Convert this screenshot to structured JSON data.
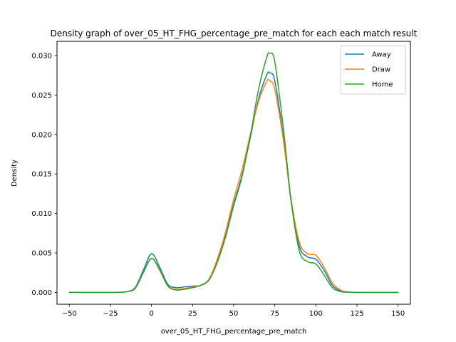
{
  "chart_data": {
    "type": "line",
    "title": "Density graph of over_05_HT_FHG_percentage_pre_match for each each match result",
    "xlabel": "over_05_HT_FHG_percentage_pre_match",
    "ylabel": "Density",
    "xlim": [
      -57.5,
      157.5
    ],
    "ylim": [
      -0.0015,
      0.0318
    ],
    "x_ticks": [
      -50,
      -25,
      0,
      25,
      50,
      75,
      100,
      125,
      150
    ],
    "x_tick_labels": [
      "−50",
      "−25",
      "0",
      "25",
      "50",
      "75",
      "100",
      "125",
      "150"
    ],
    "y_ticks": [
      0.0,
      0.005,
      0.01,
      0.015,
      0.02,
      0.025,
      0.03
    ],
    "y_tick_labels": [
      "0.000",
      "0.005",
      "0.010",
      "0.015",
      "0.020",
      "0.025",
      "0.030"
    ],
    "grid": false,
    "legend_position": "top-right",
    "x": [
      -50,
      -30,
      -20,
      -15,
      -10,
      -5,
      0,
      5,
      10,
      15,
      20,
      25,
      30,
      35,
      40,
      45,
      50,
      55,
      60,
      65,
      70,
      72,
      75,
      80,
      85,
      90,
      95,
      100,
      105,
      110,
      115,
      120,
      130,
      150
    ],
    "series": [
      {
        "name": "Away",
        "color": "#1f77b4",
        "values": [
          0,
          0,
          1e-05,
          0.0001,
          0.0006,
          0.0028,
          0.0049,
          0.0032,
          0.001,
          0.0006,
          0.0007,
          0.0008,
          0.0009,
          0.0016,
          0.004,
          0.0072,
          0.0112,
          0.0148,
          0.0195,
          0.0244,
          0.0275,
          0.0278,
          0.0268,
          0.02,
          0.0114,
          0.0058,
          0.0045,
          0.0042,
          0.0028,
          0.0009,
          0.0002,
          3e-05,
          0,
          0
        ]
      },
      {
        "name": "Draw",
        "color": "#ff7f0e",
        "values": [
          0,
          0,
          1e-05,
          0.0001,
          0.0005,
          0.0025,
          0.0043,
          0.0029,
          0.0008,
          0.0004,
          0.0005,
          0.0007,
          0.0009,
          0.0017,
          0.0042,
          0.0076,
          0.0118,
          0.0155,
          0.0199,
          0.0241,
          0.0267,
          0.0268,
          0.0257,
          0.0196,
          0.0117,
          0.0063,
          0.0049,
          0.0047,
          0.0032,
          0.0012,
          0.0003,
          5e-05,
          0,
          0
        ]
      },
      {
        "name": "Home",
        "color": "#2ca02c",
        "values": [
          0,
          0,
          1e-05,
          0.0001,
          0.0005,
          0.0025,
          0.0043,
          0.0028,
          0.0008,
          0.0003,
          0.0004,
          0.0006,
          0.0009,
          0.0016,
          0.0038,
          0.007,
          0.011,
          0.0146,
          0.0197,
          0.0256,
          0.0297,
          0.0303,
          0.0292,
          0.0212,
          0.0115,
          0.0052,
          0.0039,
          0.0036,
          0.0022,
          0.0006,
          0.0001,
          2e-05,
          0,
          0
        ]
      }
    ]
  }
}
